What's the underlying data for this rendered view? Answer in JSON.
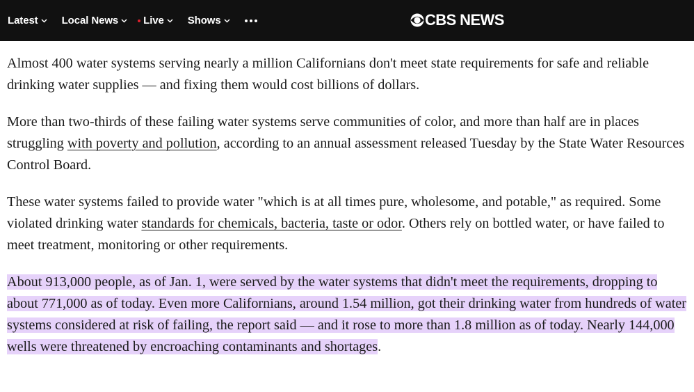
{
  "nav": {
    "items": [
      {
        "label": "Latest"
      },
      {
        "label": "Local News"
      },
      {
        "label": "Live"
      },
      {
        "label": "Shows"
      }
    ],
    "logo_text": "CBS NEWS",
    "colors": {
      "bar": "#111111",
      "live_dot": "#e01f2c"
    }
  },
  "article": {
    "p1": "Almost 400 water systems serving nearly a million Californians don't meet state requirements for safe and reliable drinking water supplies — and fixing them would cost billions of dollars.",
    "p2": {
      "before": "More than two-thirds of these failing water systems serve communities of color, and more than half are in places struggling ",
      "link": "with poverty and pollution",
      "after": ", according to an annual assessment released Tuesday by the State Water Resources Control Board."
    },
    "p3": {
      "before": "These water systems failed to provide water \"which is at all times pure, wholesome, and potable,\" as required. Some violated drinking water ",
      "link": "standards for chemicals, bacteria, taste or odor",
      "after": ". Others rely on bottled water, or have failed to meet treatment, monitoring or other requirements."
    },
    "p4": {
      "highlighted": "About 913,000 people, as of Jan. 1, were served by the water systems that didn't meet the requirements, dropping to about 771,000 as of today. Even more Californians, around 1.54 million, got their drinking water from hundreds of water systems considered at risk of failing, the report said — and it rose to more than 1.8 million as of today. Nearly 144,000 wells were threatened by encroaching contaminants and shortages",
      "after": "."
    },
    "highlight_color": "#e6d2fa"
  }
}
